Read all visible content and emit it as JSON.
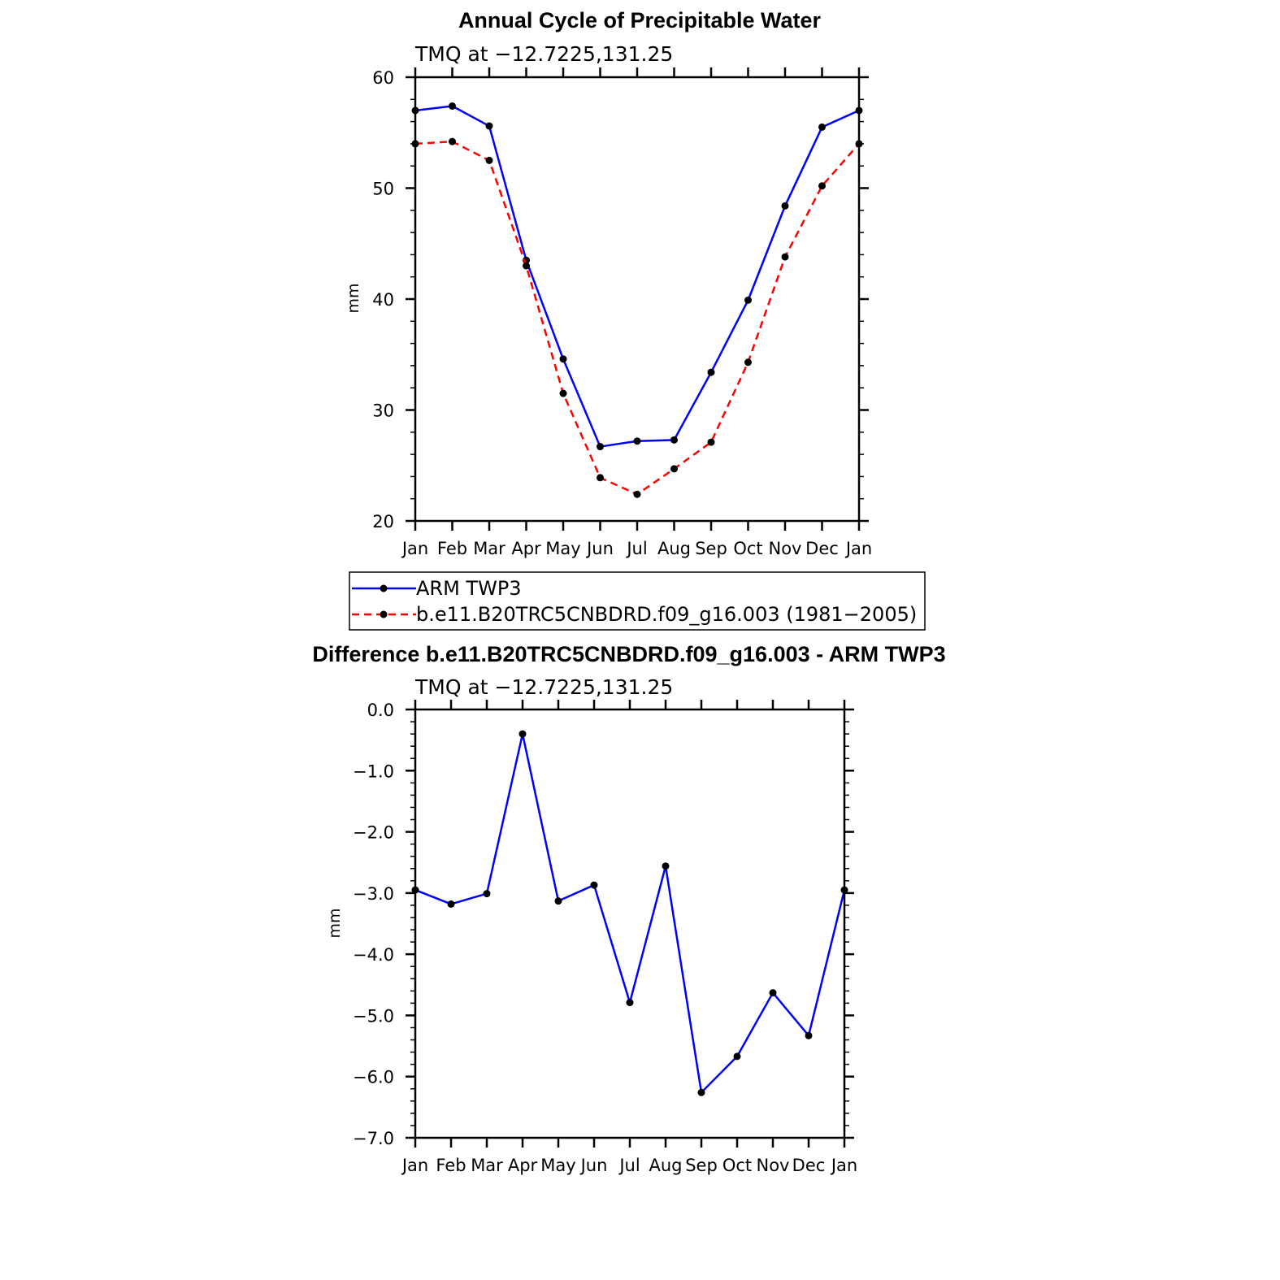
{
  "colors": {
    "obs": "#0000ff",
    "model": "#ff0000",
    "diff": "#0000ff",
    "marker": "#000000"
  },
  "chart_data": [
    {
      "type": "line",
      "title": "Annual Cycle of Precipitable Water",
      "subtitle": "TMQ  at  −12.7225,131.25",
      "ylabel": "mm",
      "ylim": [
        20,
        60
      ],
      "yticks": [
        20,
        30,
        40,
        50,
        60
      ],
      "ytick_labels": [
        "20",
        "30",
        "40",
        "50",
        "60"
      ],
      "categories": [
        "Jan",
        "Feb",
        "Mar",
        "Apr",
        "May",
        "Jun",
        "Jul",
        "Aug",
        "Sep",
        "Oct",
        "Nov",
        "Dec",
        "Jan"
      ],
      "series": [
        {
          "name": "ARM  TWP3",
          "style": "solid",
          "values": [
            57.0,
            57.4,
            55.6,
            43.5,
            34.6,
            26.7,
            27.2,
            27.3,
            33.4,
            39.9,
            48.4,
            55.5,
            57.0
          ]
        },
        {
          "name": "b.e11.B20TRC5CNBDRD.f09_g16.003 (1981−2005)",
          "style": "dashed",
          "values": [
            54.0,
            54.2,
            52.5,
            43.0,
            31.5,
            23.9,
            22.4,
            24.7,
            27.1,
            34.3,
            43.8,
            50.2,
            54.0
          ]
        }
      ],
      "legend_position": "below"
    },
    {
      "type": "line",
      "title": "Difference b.e11.B20TRC5CNBDRD.f09_g16.003 - ARM TWP3",
      "subtitle": "TMQ  at  −12.7225,131.25",
      "ylabel": "mm",
      "ylim": [
        -7.0,
        0.0
      ],
      "yticks": [
        0,
        -1,
        -2,
        -3,
        -4,
        -5,
        -6,
        -7
      ],
      "ytick_labels": [
        "0.0",
        "−1.0",
        "−2.0",
        "−3.0",
        "−4.0",
        "−5.0",
        "−6.0",
        "−7.0"
      ],
      "categories": [
        "Jan",
        "Feb",
        "Mar",
        "Apr",
        "May",
        "Jun",
        "Jul",
        "Aug",
        "Sep",
        "Oct",
        "Nov",
        "Dec",
        "Jan"
      ],
      "series": [
        {
          "name": "Difference",
          "style": "solid",
          "values": [
            -2.95,
            -3.18,
            -3.01,
            -0.4,
            -3.13,
            -2.87,
            -4.79,
            -2.56,
            -6.26,
            -5.67,
            -4.63,
            -5.33,
            -2.95
          ]
        }
      ]
    }
  ]
}
